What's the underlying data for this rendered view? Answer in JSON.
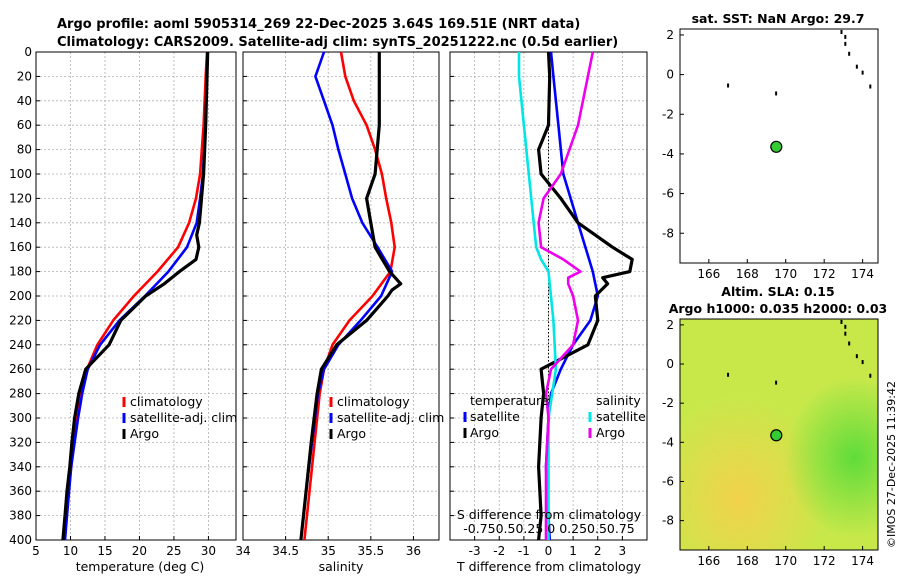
{
  "title_line1": "Argo profile: aoml 5905314_269 22-Dec-2025 3.64S 169.51E (NRT data)",
  "title_line2": "Climatology: CARS2009. Satellite-adj clim: synTS_20251222.nc (0.5d earlier)",
  "watermark": "©IMOS 27-Dec-2025 11:39:42",
  "colors": {
    "climatology": "#ff0000",
    "satellite": "#0000ff",
    "argo": "#000000",
    "sat_salinity": "#00e5e5",
    "argo_salinity": "#ee00ee",
    "sst_background": "#ffffff",
    "sla_background": "#c8e84a",
    "float_marker": "#33cc33"
  },
  "chart_data": [
    {
      "type": "line",
      "name": "temperature",
      "xlabel": "temperature (deg C)",
      "xlim": [
        5,
        34
      ],
      "xticks": [
        5,
        10,
        15,
        20,
        25,
        30
      ],
      "ylim": [
        400,
        0
      ],
      "yticks": [
        0,
        20,
        40,
        60,
        80,
        100,
        120,
        140,
        160,
        180,
        200,
        220,
        240,
        260,
        280,
        300,
        320,
        340,
        360,
        380,
        400
      ],
      "legend": [
        "climatology",
        "satellite-adj. clim",
        "Argo"
      ],
      "series": [
        {
          "name": "climatology",
          "depth": [
            0,
            20,
            60,
            100,
            120,
            140,
            160,
            180,
            200,
            220,
            240,
            260,
            280,
            300,
            320,
            340,
            360,
            380,
            400
          ],
          "values": [
            29.8,
            29.6,
            29.3,
            28.8,
            28.2,
            27.2,
            25.6,
            22.6,
            19.2,
            16.2,
            13.9,
            12.4,
            11.5,
            10.9,
            10.5,
            10.1,
            9.7,
            9.4,
            9.1
          ]
        },
        {
          "name": "satellite-adj. clim",
          "depth": [
            0,
            20,
            60,
            100,
            120,
            140,
            160,
            180,
            200,
            220,
            240,
            260,
            280,
            300,
            320,
            340,
            360,
            380,
            400
          ],
          "values": [
            29.9,
            29.8,
            29.6,
            29.2,
            28.8,
            28.3,
            26.9,
            24.2,
            20.8,
            17.1,
            14.3,
            12.5,
            11.7,
            11.1,
            10.6,
            10.1,
            9.8,
            9.5,
            9.2
          ]
        },
        {
          "name": "Argo",
          "depth": [
            0,
            20,
            60,
            100,
            140,
            150,
            160,
            170,
            180,
            190,
            200,
            220,
            240,
            260,
            280,
            300,
            320,
            340,
            360,
            380,
            400
          ],
          "values": [
            29.9,
            29.8,
            29.6,
            29.3,
            28.7,
            28.3,
            28.6,
            28.2,
            25.8,
            23.6,
            20.9,
            17.3,
            15.6,
            12.2,
            11.2,
            10.6,
            10.2,
            9.9,
            9.5,
            9.2,
            8.9
          ]
        }
      ]
    },
    {
      "type": "line",
      "name": "salinity",
      "xlabel": "salinity",
      "xlim": [
        34,
        36.3
      ],
      "xticks": [
        34,
        34.5,
        35,
        35.5,
        36
      ],
      "ylim": [
        400,
        0
      ],
      "legend": [
        "climatology",
        "satellite-adj. clim",
        "Argo"
      ],
      "series": [
        {
          "name": "climatology",
          "depth": [
            0,
            20,
            40,
            60,
            80,
            100,
            120,
            140,
            160,
            180,
            200,
            220,
            240,
            260,
            280,
            320,
            360,
            400
          ],
          "values": [
            35.15,
            35.2,
            35.3,
            35.45,
            35.55,
            35.63,
            35.68,
            35.74,
            35.78,
            35.73,
            35.52,
            35.25,
            35.05,
            34.95,
            34.9,
            34.84,
            34.78,
            34.72
          ]
        },
        {
          "name": "satellite-adj. clim",
          "depth": [
            0,
            20,
            40,
            60,
            80,
            100,
            120,
            140,
            160,
            180,
            200,
            220,
            240,
            260,
            280,
            320,
            360,
            400
          ],
          "values": [
            34.95,
            34.85,
            34.95,
            35.05,
            35.12,
            35.2,
            35.28,
            35.4,
            35.58,
            35.75,
            35.62,
            35.38,
            35.12,
            34.95,
            34.88,
            34.81,
            34.74,
            34.68
          ]
        },
        {
          "name": "Argo",
          "depth": [
            0,
            20,
            60,
            100,
            120,
            140,
            160,
            180,
            190,
            195,
            200,
            220,
            240,
            260,
            280,
            320,
            360,
            400
          ],
          "values": [
            35.6,
            35.6,
            35.6,
            35.55,
            35.45,
            35.5,
            35.55,
            35.72,
            35.85,
            35.75,
            35.7,
            35.45,
            35.1,
            34.92,
            34.87,
            34.8,
            34.74,
            34.68
          ]
        }
      ]
    },
    {
      "type": "line",
      "name": "differences",
      "xlabel": "T difference from climatology",
      "xlim": [
        -4,
        4
      ],
      "xticks": [
        -3,
        -2,
        -1,
        0,
        1,
        2,
        3
      ],
      "top_label": "S difference from climatology",
      "top_ticks": [
        "-0.75",
        "0.5",
        "0.25",
        "0",
        "0.25",
        "0.5",
        "0.75"
      ],
      "ylim": [
        400,
        0
      ],
      "legend": [
        "temperature",
        "satellite",
        "Argo",
        "salinity",
        "satellite",
        "Argo"
      ],
      "series": [
        {
          "name": "temperature satellite",
          "depth": [
            0,
            20,
            60,
            100,
            140,
            160,
            180,
            200,
            220,
            240,
            260,
            280,
            300,
            340,
            380,
            400
          ],
          "values": [
            0.1,
            0.2,
            0.4,
            0.6,
            1.2,
            1.5,
            1.8,
            2.0,
            1.7,
            1.0,
            0.5,
            0.1,
            0.0,
            -0.1,
            0.0,
            0.05
          ]
        },
        {
          "name": "temperature Argo",
          "depth": [
            0,
            20,
            60,
            80,
            100,
            120,
            140,
            160,
            170,
            180,
            185,
            190,
            200,
            220,
            240,
            260,
            280,
            300,
            340,
            380,
            400
          ],
          "values": [
            0.0,
            0.05,
            0.0,
            -0.4,
            -0.3,
            0.5,
            1.2,
            2.6,
            3.4,
            3.3,
            2.2,
            2.4,
            1.9,
            2.0,
            1.6,
            -0.3,
            -0.2,
            -0.3,
            -0.4,
            -0.3,
            -0.4
          ]
        },
        {
          "name": "salinity satellite",
          "depth": [
            0,
            20,
            60,
            100,
            140,
            160,
            170,
            180,
            220,
            260,
            300,
            340,
            380,
            400
          ],
          "values": [
            -1.2,
            -1.2,
            -1.0,
            -0.8,
            -0.6,
            -0.5,
            -0.3,
            0.0,
            0.2,
            0.3,
            0.0,
            0.0,
            0.0,
            0.0
          ]
        },
        {
          "name": "salinity Argo",
          "depth": [
            0,
            20,
            60,
            100,
            120,
            140,
            160,
            170,
            180,
            185,
            190,
            200,
            220,
            240,
            260,
            280,
            300,
            340,
            380,
            400
          ],
          "values": [
            1.8,
            1.6,
            1.2,
            0.5,
            -0.2,
            -0.4,
            -0.3,
            0.6,
            1.3,
            0.8,
            0.8,
            1.0,
            1.2,
            1.0,
            0.1,
            -0.1,
            0.0,
            -0.1,
            -0.1,
            -0.1
          ]
        }
      ]
    },
    {
      "type": "scatter",
      "name": "sst_map",
      "title": "sat. SST: NaN Argo: 29.7",
      "xlim": [
        164.5,
        174.8
      ],
      "ylim": [
        -9.5,
        2.3
      ],
      "xticks": [
        166,
        168,
        170,
        172,
        174
      ],
      "yticks": [
        -8,
        -6,
        -4,
        -2,
        0,
        2
      ],
      "float_position": {
        "lon": 169.51,
        "lat": -3.64
      }
    },
    {
      "type": "heatmap",
      "name": "sla_map",
      "title_line1": "Altim. SLA: 0.15",
      "title_line2": "Argo h1000: 0.035 h2000: 0.03",
      "xlim": [
        164.5,
        174.8
      ],
      "ylim": [
        -9.5,
        2.3
      ],
      "xticks": [
        166,
        168,
        170,
        172,
        174
      ],
      "yticks": [
        -8,
        -6,
        -4,
        -2,
        0,
        2
      ],
      "float_position": {
        "lon": 169.51,
        "lat": -3.64
      }
    }
  ]
}
